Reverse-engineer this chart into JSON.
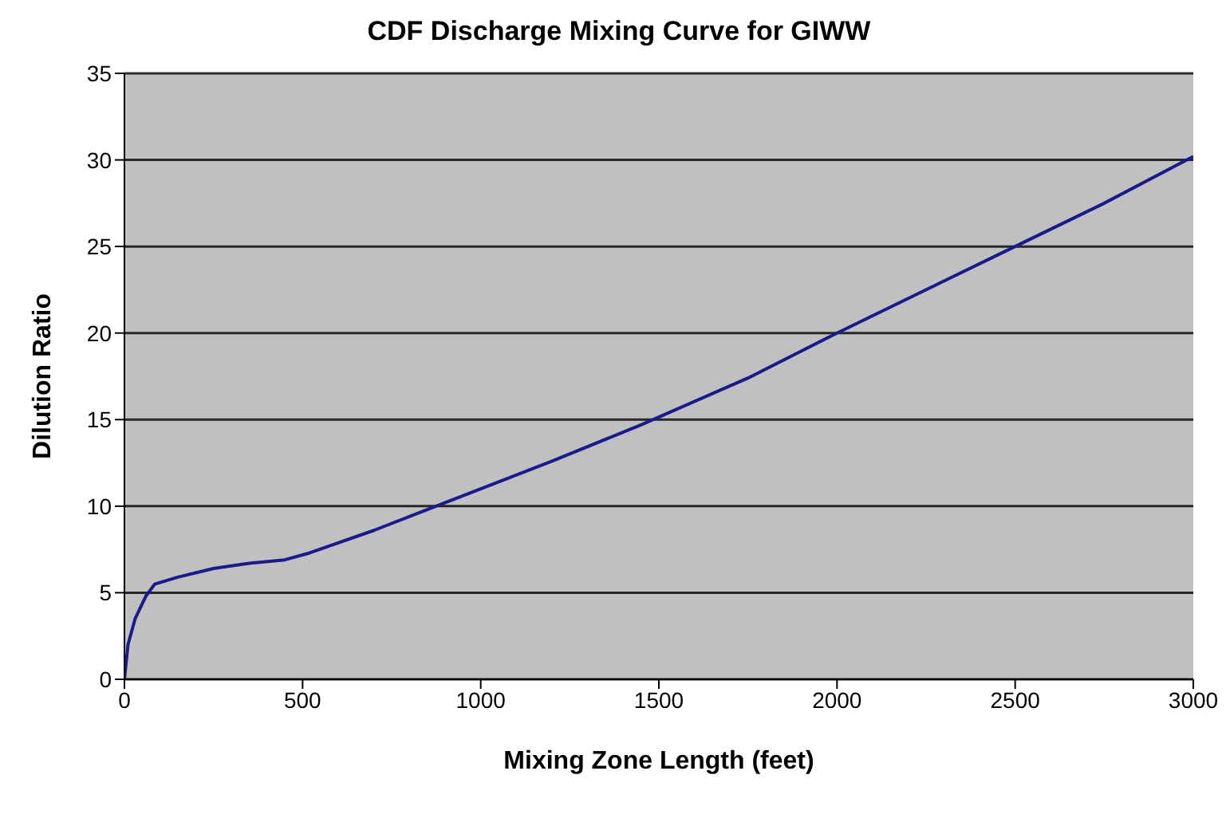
{
  "chart_data": {
    "type": "line",
    "title": "CDF Discharge Mixing Curve for GIWW",
    "xlabel": "Mixing Zone Length  (feet)",
    "ylabel": "Dilution Ratio",
    "x": [
      0,
      10,
      30,
      60,
      85,
      150,
      250,
      350,
      450,
      520,
      700,
      850,
      1000,
      1200,
      1450,
      1750,
      2000,
      2300,
      2500,
      2750,
      3000
    ],
    "series": [
      {
        "color": "#1a1a8c",
        "values": [
          0,
          2,
          3.5,
          4.8,
          5.5,
          5.9,
          6.4,
          6.7,
          6.9,
          7.3,
          8.6,
          9.8,
          11,
          12.6,
          14.7,
          17.4,
          20,
          23,
          25,
          27.5,
          30.2
        ]
      }
    ],
    "xlim": [
      0,
      3000
    ],
    "xticks": [
      0,
      500,
      1000,
      1500,
      2000,
      2500,
      3000
    ],
    "ylim": [
      0,
      35
    ],
    "yticks": [
      0,
      5,
      10,
      15,
      20,
      25,
      30,
      35
    ],
    "grid": "y",
    "legend": false,
    "marker": "none",
    "line_style": "solid"
  }
}
